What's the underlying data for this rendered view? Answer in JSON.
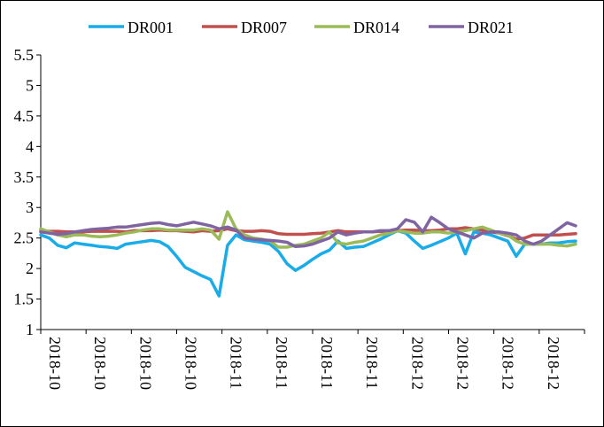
{
  "chart_data": {
    "type": "line",
    "title": "",
    "xlabel": "",
    "ylabel": "",
    "ylim": [
      1,
      5.5
    ],
    "yticks": [
      "1",
      "1.5",
      "2",
      "2.5",
      "3",
      "3.5",
      "4",
      "4.5",
      "5",
      "5.5"
    ],
    "xtick_labels": [
      "2018-10",
      "2018-10",
      "2018-10",
      "2018-10",
      "2018-11",
      "2018-11",
      "2018-11",
      "2018-11",
      "2018-12",
      "2018-12",
      "2018-12",
      "2018-12"
    ],
    "legend_position": "top",
    "grid": false,
    "x": [
      0,
      1,
      2,
      3,
      4,
      5,
      6,
      7,
      8,
      9,
      10,
      11,
      12,
      13,
      14,
      15,
      16,
      17,
      18,
      19,
      20,
      21,
      22,
      23,
      24,
      25,
      26,
      27,
      28,
      29,
      30,
      31,
      32,
      33,
      34,
      35,
      36,
      37,
      38,
      39,
      40,
      41,
      42,
      43,
      44,
      45,
      46,
      47,
      48,
      49,
      50,
      51,
      52,
      53,
      54,
      55,
      56,
      57,
      58,
      59,
      60,
      61,
      62,
      63
    ],
    "series": [
      {
        "name": "DR001",
        "color": "#1AACE8",
        "values": [
          2.55,
          2.5,
          2.38,
          2.34,
          2.42,
          2.4,
          2.38,
          2.36,
          2.35,
          2.33,
          2.4,
          2.42,
          2.44,
          2.46,
          2.44,
          2.36,
          2.2,
          2.02,
          1.95,
          1.88,
          1.82,
          1.55,
          2.38,
          2.55,
          2.47,
          2.45,
          2.43,
          2.4,
          2.28,
          2.08,
          1.97,
          2.05,
          2.15,
          2.24,
          2.3,
          2.45,
          2.33,
          2.35,
          2.36,
          2.42,
          2.48,
          2.55,
          2.62,
          2.58,
          2.45,
          2.33,
          2.38,
          2.44,
          2.5,
          2.58,
          2.24,
          2.6,
          2.58,
          2.55,
          2.5,
          2.45,
          2.2,
          2.4,
          2.4,
          2.4,
          2.42,
          2.42,
          2.44,
          2.45
        ]
      },
      {
        "name": "DR007",
        "color": "#C0504D",
        "values": [
          2.62,
          2.61,
          2.61,
          2.6,
          2.6,
          2.6,
          2.61,
          2.61,
          2.61,
          2.61,
          2.6,
          2.62,
          2.62,
          2.62,
          2.63,
          2.62,
          2.62,
          2.61,
          2.6,
          2.62,
          2.61,
          2.62,
          2.65,
          2.62,
          2.61,
          2.61,
          2.62,
          2.61,
          2.57,
          2.56,
          2.56,
          2.56,
          2.57,
          2.58,
          2.6,
          2.62,
          2.6,
          2.6,
          2.6,
          2.6,
          2.61,
          2.6,
          2.62,
          2.63,
          2.63,
          2.62,
          2.62,
          2.63,
          2.65,
          2.65,
          2.67,
          2.65,
          2.63,
          2.6,
          2.58,
          2.54,
          2.48,
          2.5,
          2.55,
          2.55,
          2.55,
          2.55,
          2.56,
          2.57
        ]
      },
      {
        "name": "DR014",
        "color": "#9BBB59",
        "values": [
          2.65,
          2.6,
          2.55,
          2.52,
          2.55,
          2.55,
          2.53,
          2.52,
          2.53,
          2.55,
          2.58,
          2.6,
          2.63,
          2.65,
          2.65,
          2.63,
          2.63,
          2.63,
          2.63,
          2.65,
          2.63,
          2.48,
          2.93,
          2.65,
          2.55,
          2.5,
          2.48,
          2.45,
          2.35,
          2.35,
          2.38,
          2.4,
          2.45,
          2.5,
          2.6,
          2.42,
          2.4,
          2.43,
          2.45,
          2.5,
          2.55,
          2.58,
          2.62,
          2.6,
          2.58,
          2.58,
          2.6,
          2.6,
          2.58,
          2.6,
          2.62,
          2.65,
          2.68,
          2.63,
          2.58,
          2.55,
          2.45,
          2.4,
          2.4,
          2.4,
          2.4,
          2.38,
          2.37,
          2.4
        ]
      },
      {
        "name": "DR021",
        "color": "#8064A2",
        "values": [
          2.6,
          2.58,
          2.56,
          2.57,
          2.6,
          2.62,
          2.64,
          2.65,
          2.66,
          2.68,
          2.68,
          2.7,
          2.72,
          2.74,
          2.75,
          2.72,
          2.7,
          2.73,
          2.76,
          2.73,
          2.7,
          2.65,
          2.68,
          2.63,
          2.5,
          2.48,
          2.47,
          2.46,
          2.45,
          2.43,
          2.36,
          2.37,
          2.4,
          2.45,
          2.5,
          2.6,
          2.55,
          2.58,
          2.6,
          2.6,
          2.62,
          2.62,
          2.65,
          2.8,
          2.76,
          2.6,
          2.84,
          2.75,
          2.65,
          2.6,
          2.55,
          2.5,
          2.58,
          2.6,
          2.6,
          2.58,
          2.55,
          2.45,
          2.4,
          2.45,
          2.55,
          2.65,
          2.75,
          2.7
        ]
      }
    ]
  }
}
